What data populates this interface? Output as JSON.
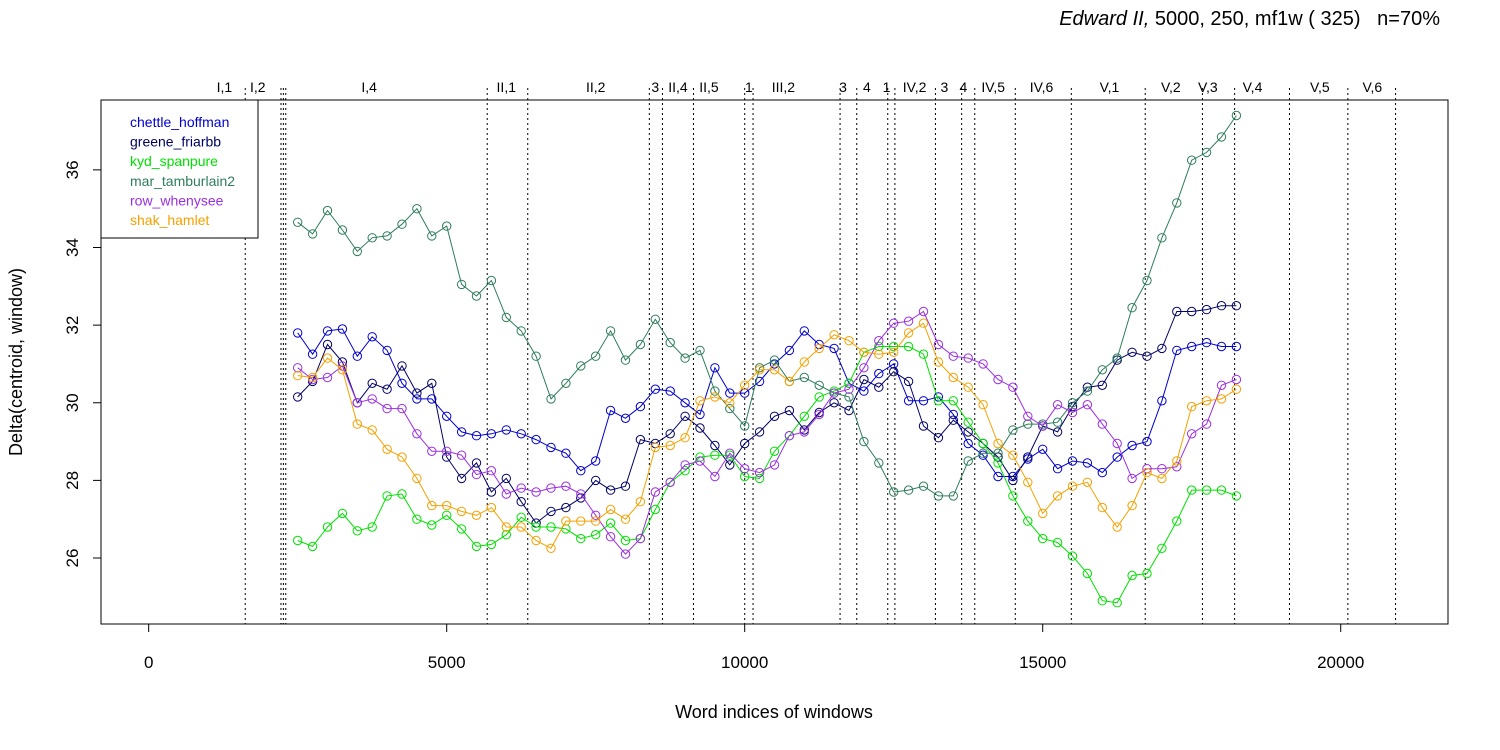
{
  "title": {
    "italic": "Edward II,",
    "rest": " 5000, 250, mf1w ( 325)   n=70%"
  },
  "chart_data": {
    "type": "line",
    "xlabel": "Word indices of windows",
    "ylabel": "Delta(centroid, window)",
    "xlim": [
      -800,
      21800
    ],
    "ylim": [
      24.3,
      37.8
    ],
    "xticks": [
      0,
      5000,
      10000,
      15000,
      20000
    ],
    "xtick_labels": [
      "0",
      "5000",
      "10000",
      "15000",
      "20000"
    ],
    "yticks": [
      26,
      28,
      30,
      32,
      34,
      36
    ],
    "ytick_labels": [
      "26",
      "28",
      "30",
      "32",
      "34",
      "36"
    ],
    "grid": false,
    "legend_position": "top-left",
    "scenes": [
      {
        "x": 1620,
        "label": "I,1",
        "label_x": 1270
      },
      {
        "x": 2220,
        "label": "I,2",
        "label_x": 1830
      },
      {
        "x": 2260,
        "label": "",
        "label_x": 2260
      },
      {
        "x": 2300,
        "label": "I,4",
        "label_x": 3700
      },
      {
        "x": 5680,
        "label": "II,1",
        "label_x": 6000
      },
      {
        "x": 6360,
        "label": "II,2",
        "label_x": 7500
      },
      {
        "x": 8400,
        "label": "3",
        "label_x": 8500
      },
      {
        "x": 8620,
        "label": "II,4",
        "label_x": 8880
      },
      {
        "x": 9140,
        "label": "II,5",
        "label_x": 9400
      },
      {
        "x": 10000,
        "label": "1",
        "label_x": 10070
      },
      {
        "x": 10140,
        "label": "III,2",
        "label_x": 10650
      },
      {
        "x": 11600,
        "label": "3",
        "label_x": 11650
      },
      {
        "x": 11880,
        "label": "4",
        "label_x": 12050
      },
      {
        "x": 12400,
        "label": "1",
        "label_x": 12380
      },
      {
        "x": 12520,
        "label": "IV,2",
        "label_x": 12850
      },
      {
        "x": 13200,
        "label": "3",
        "label_x": 13350
      },
      {
        "x": 13640,
        "label": "4",
        "label_x": 13670
      },
      {
        "x": 13860,
        "label": "IV,5",
        "label_x": 14170
      },
      {
        "x": 14540,
        "label": "IV,6",
        "label_x": 14980
      },
      {
        "x": 15480,
        "label": "V,1",
        "label_x": 16120
      },
      {
        "x": 16720,
        "label": "V,2",
        "label_x": 17150
      },
      {
        "x": 17680,
        "label": "V,3",
        "label_x": 17770
      },
      {
        "x": 18220,
        "label": "V,4",
        "label_x": 18520
      },
      {
        "x": 19140,
        "label": "V,5",
        "label_x": 19650
      },
      {
        "x": 20120,
        "label": "V,6",
        "label_x": 20530
      },
      {
        "x": 20920,
        "label": "",
        "label_x": 20920
      }
    ],
    "x": [
      2500,
      2750,
      3000,
      3250,
      3500,
      3750,
      4000,
      4250,
      4500,
      4750,
      5000,
      5250,
      5500,
      5750,
      6000,
      6250,
      6500,
      6750,
      7000,
      7250,
      7500,
      7750,
      8000,
      8250,
      8500,
      8750,
      9000,
      9250,
      9500,
      9750,
      10000,
      10250,
      10500,
      10750,
      11000,
      11250,
      11500,
      11750,
      12000,
      12250,
      12500,
      12750,
      13000,
      13250,
      13500,
      13750,
      14000,
      14250,
      14500,
      14750,
      15000,
      15250,
      15500,
      15750,
      16000,
      16250,
      16500,
      16750,
      17000,
      17250,
      17500,
      17750,
      18000,
      18250
    ],
    "series": [
      {
        "name": "chettle_hoffman",
        "color": "#0000cd",
        "values": [
          31.8,
          31.25,
          31.85,
          31.9,
          31.2,
          31.7,
          31.35,
          30.5,
          30.1,
          30.1,
          29.65,
          29.25,
          29.15,
          29.2,
          29.3,
          29.2,
          29.05,
          28.85,
          28.7,
          28.25,
          28.5,
          29.8,
          29.6,
          29.9,
          30.35,
          30.3,
          30.0,
          29.7,
          30.9,
          30.25,
          30.25,
          30.55,
          31.0,
          31.35,
          31.85,
          31.5,
          31.4,
          30.5,
          30.3,
          30.75,
          31.0,
          30.05,
          30.05,
          30.15,
          29.7,
          28.95,
          28.65,
          28.1,
          28.1,
          28.55,
          28.8,
          28.3,
          28.5,
          28.45,
          28.2,
          28.6,
          28.9,
          29.0,
          30.05,
          31.35,
          31.45,
          31.55,
          31.45,
          31.45
        ]
      },
      {
        "name": "greene_friarbb",
        "color": "#000066",
        "values": [
          30.15,
          30.55,
          31.5,
          31.05,
          30.0,
          30.5,
          30.35,
          30.95,
          30.25,
          30.5,
          28.6,
          28.05,
          28.45,
          27.7,
          28.05,
          27.45,
          26.9,
          27.2,
          27.3,
          27.55,
          28.0,
          27.75,
          27.85,
          29.05,
          28.95,
          29.2,
          29.65,
          29.35,
          28.9,
          28.4,
          28.95,
          29.25,
          29.65,
          29.8,
          29.3,
          29.75,
          30.0,
          29.8,
          30.6,
          30.4,
          30.8,
          30.55,
          29.4,
          29.1,
          29.55,
          29.25,
          28.95,
          28.6,
          28.0,
          28.6,
          29.4,
          29.25,
          29.9,
          30.4,
          30.45,
          31.1,
          31.3,
          31.2,
          31.4,
          32.35,
          32.35,
          32.4,
          32.5,
          32.5
        ]
      },
      {
        "name": "kyd_spanpure",
        "color": "#00e000",
        "values": [
          26.45,
          26.3,
          26.8,
          27.15,
          26.7,
          26.8,
          27.6,
          27.65,
          27.0,
          26.85,
          27.1,
          26.75,
          26.3,
          26.35,
          26.6,
          27.05,
          26.8,
          26.8,
          26.75,
          26.5,
          26.6,
          26.9,
          26.45,
          26.5,
          27.25,
          27.95,
          28.25,
          28.6,
          28.65,
          28.65,
          28.1,
          28.05,
          28.75,
          29.15,
          29.65,
          30.15,
          30.3,
          30.5,
          31.3,
          31.45,
          31.45,
          31.45,
          31.25,
          30.05,
          30.05,
          29.5,
          28.95,
          28.45,
          27.6,
          26.95,
          26.5,
          26.4,
          26.05,
          25.6,
          24.9,
          24.85,
          25.55,
          25.6,
          26.25,
          26.95,
          27.75,
          27.75,
          27.75,
          27.6
        ]
      },
      {
        "name": "mar_tamburlain2",
        "color": "#2e7d5b",
        "values": [
          34.65,
          34.35,
          34.95,
          34.45,
          33.9,
          34.25,
          34.3,
          34.6,
          35.0,
          34.3,
          34.55,
          33.05,
          32.75,
          33.15,
          32.2,
          31.85,
          31.2,
          30.1,
          30.5,
          30.95,
          31.2,
          31.85,
          31.1,
          31.5,
          32.15,
          31.55,
          31.15,
          31.35,
          30.3,
          29.85,
          29.4,
          30.9,
          31.1,
          30.55,
          30.65,
          30.45,
          30.25,
          30.15,
          29.0,
          28.45,
          27.7,
          27.75,
          27.85,
          27.6,
          27.6,
          28.5,
          28.7,
          28.7,
          29.3,
          29.45,
          29.45,
          29.5,
          30.0,
          30.3,
          30.85,
          31.15,
          32.45,
          33.15,
          34.25,
          35.15,
          36.25,
          36.45,
          36.85,
          37.4
        ]
      },
      {
        "name": "row_whenysee",
        "color": "#9b2fe0",
        "values": [
          30.9,
          30.6,
          30.65,
          30.95,
          30.0,
          30.1,
          29.85,
          29.85,
          29.2,
          28.75,
          28.75,
          28.65,
          28.15,
          28.25,
          27.65,
          27.8,
          27.7,
          27.8,
          27.85,
          27.65,
          27.1,
          26.55,
          26.1,
          26.5,
          27.7,
          27.95,
          28.4,
          28.5,
          28.1,
          28.7,
          28.3,
          28.2,
          28.4,
          29.15,
          29.25,
          29.7,
          30.25,
          30.35,
          30.9,
          31.6,
          32.05,
          32.1,
          32.35,
          31.5,
          31.2,
          31.15,
          31.0,
          30.6,
          30.4,
          29.65,
          29.4,
          29.95,
          29.75,
          29.95,
          29.45,
          28.95,
          28.05,
          28.3,
          28.3,
          28.35,
          29.2,
          29.45,
          30.45,
          30.6
        ]
      },
      {
        "name": "shak_hamlet",
        "color": "#f5a000",
        "values": [
          30.7,
          30.65,
          31.15,
          30.85,
          29.45,
          29.3,
          28.8,
          28.6,
          28.05,
          27.35,
          27.35,
          27.2,
          27.1,
          27.3,
          26.8,
          26.8,
          26.45,
          26.25,
          26.95,
          26.95,
          26.95,
          27.25,
          27.0,
          27.45,
          28.85,
          28.9,
          29.1,
          30.05,
          30.15,
          30.0,
          30.45,
          30.85,
          30.85,
          30.55,
          31.05,
          31.4,
          31.75,
          31.6,
          31.3,
          31.25,
          31.3,
          31.8,
          32.05,
          31.05,
          30.65,
          30.4,
          29.95,
          28.95,
          28.65,
          27.95,
          27.15,
          27.6,
          27.85,
          27.95,
          27.3,
          26.8,
          27.35,
          28.2,
          28.05,
          28.5,
          29.9,
          30.05,
          30.1,
          30.35
        ]
      }
    ]
  }
}
